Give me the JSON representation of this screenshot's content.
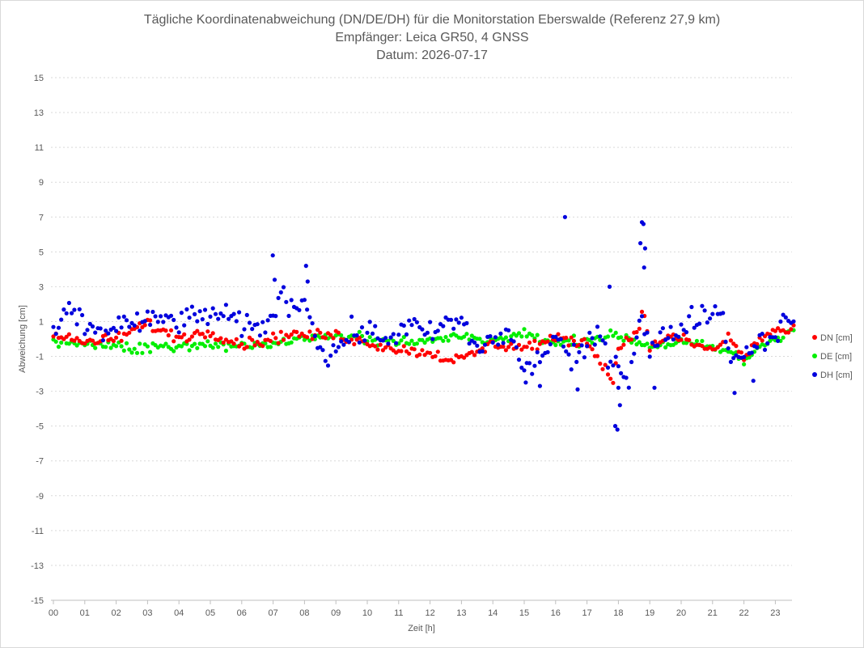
{
  "chart_data": {
    "type": "scatter",
    "title": "Tägliche Koordinatenabweichung (DN/DE/DH) für die Monitorstation Eberswalde (Referenz 27,9 km)",
    "subtitle_lines": [
      "Empfänger: Leica GR50, 4 GNSS",
      "Datum: 2026-07-17"
    ],
    "xlabel": "Zeit [h]",
    "ylabel": "Abweichung [cm]",
    "xlim": [
      0,
      24
    ],
    "ylim": [
      -15,
      15
    ],
    "y_ticks": [
      15,
      13,
      11,
      9,
      7,
      5,
      3,
      1,
      -1,
      -3,
      -5,
      -7,
      -9,
      -11,
      -13,
      -15
    ],
    "y_tick_labels": [
      "15",
      "13",
      "11",
      "9",
      "7",
      "5",
      "3",
      "1",
      "-1",
      "-3",
      "-5",
      "-7",
      "-9",
      "-11",
      "-13",
      "-15"
    ],
    "x_tick_labels": [
      "00",
      "01",
      "02",
      "03",
      "04",
      "05",
      "06",
      "07",
      "08",
      "09",
      "10",
      "11",
      "12",
      "13",
      "14",
      "15",
      "16",
      "17",
      "18",
      "19",
      "20",
      "21",
      "22",
      "23"
    ],
    "grid": "horizontal-dotted",
    "legend_position": "right",
    "sampling_minutes": 5,
    "series": [
      {
        "name": "DN [cm]",
        "color": "#ff0000",
        "knots": [
          [
            0,
            0.2
          ],
          [
            1,
            -0.2
          ],
          [
            2,
            0
          ],
          [
            3,
            0.9
          ],
          [
            3.5,
            0.4
          ],
          [
            4,
            0.1
          ],
          [
            5,
            0.4
          ],
          [
            6,
            -0.3
          ],
          [
            7,
            0
          ],
          [
            7.5,
            0.3
          ],
          [
            8,
            0.2
          ],
          [
            9,
            0.2
          ],
          [
            10,
            -0.2
          ],
          [
            11,
            -0.6
          ],
          [
            12,
            -0.8
          ],
          [
            12.5,
            -1.1
          ],
          [
            13,
            -1.2
          ],
          [
            14,
            -0.3
          ],
          [
            15,
            -0.5
          ],
          [
            16,
            0
          ],
          [
            17,
            -0.2
          ],
          [
            17.6,
            -1.6
          ],
          [
            17.8,
            -2.8
          ],
          [
            18,
            -0.5
          ],
          [
            18.5,
            0.3
          ],
          [
            18.8,
            1.5
          ],
          [
            19,
            -0.5
          ],
          [
            19.5,
            0.1
          ],
          [
            20,
            0
          ],
          [
            21,
            -0.7
          ],
          [
            21.5,
            0.1
          ],
          [
            22,
            -1.1
          ],
          [
            22.5,
            0
          ],
          [
            23,
            0.5
          ],
          [
            23.6,
            0.4
          ]
        ],
        "noise": 0.22
      },
      {
        "name": "DE [cm]",
        "color": "#00ee00",
        "knots": [
          [
            0,
            -0.2
          ],
          [
            1,
            -0.3
          ],
          [
            2,
            -0.4
          ],
          [
            3,
            -0.5
          ],
          [
            4,
            -0.5
          ],
          [
            5,
            -0.3
          ],
          [
            6,
            -0.4
          ],
          [
            7,
            -0.3
          ],
          [
            8,
            0.1
          ],
          [
            9,
            0.1
          ],
          [
            10,
            0
          ],
          [
            11,
            -0.2
          ],
          [
            12,
            -0.1
          ],
          [
            13,
            0.2
          ],
          [
            14,
            -0.1
          ],
          [
            15,
            0.3
          ],
          [
            16,
            -0.3
          ],
          [
            17,
            0
          ],
          [
            18,
            0.2
          ],
          [
            19,
            -0.4
          ],
          [
            20,
            -0.2
          ],
          [
            21,
            -0.5
          ],
          [
            21.5,
            -0.7
          ],
          [
            22,
            -1.3
          ],
          [
            22.5,
            -0.4
          ],
          [
            23,
            0
          ],
          [
            23.6,
            0.7
          ]
        ],
        "noise": 0.2
      },
      {
        "name": "DH [cm]",
        "color": "#0000dd",
        "knots": [
          [
            0,
            0.3
          ],
          [
            0.5,
            1.6
          ],
          [
            1,
            0.8
          ],
          [
            1.5,
            0.3
          ],
          [
            2,
            0.8
          ],
          [
            2.5,
            0.9
          ],
          [
            3,
            0.9
          ],
          [
            3.5,
            1.2
          ],
          [
            4,
            1
          ],
          [
            4.5,
            1.2
          ],
          [
            5,
            1.5
          ],
          [
            5.5,
            1.2
          ],
          [
            6,
            0.8
          ],
          [
            6.5,
            0.5
          ],
          [
            7,
            1.4
          ],
          [
            7.3,
            2.5
          ],
          [
            7.7,
            1.9
          ],
          [
            8,
            2.2
          ],
          [
            8.3,
            0.9
          ],
          [
            8.6,
            -1.2
          ],
          [
            9,
            -0.6
          ],
          [
            9.5,
            0.3
          ],
          [
            10,
            0.4
          ],
          [
            10.5,
            0
          ],
          [
            11,
            0.4
          ],
          [
            11.5,
            0.7
          ],
          [
            12,
            0.2
          ],
          [
            12.5,
            0.9
          ],
          [
            13,
            1
          ],
          [
            13.5,
            -0.6
          ],
          [
            14,
            0
          ],
          [
            14.5,
            0.3
          ],
          [
            15,
            -1.8
          ],
          [
            15.5,
            -1.2
          ],
          [
            16,
            0.3
          ],
          [
            16.5,
            -1.5
          ],
          [
            17,
            -0.4
          ],
          [
            17.5,
            0.3
          ],
          [
            17.8,
            -1.5
          ],
          [
            18,
            -1.3
          ],
          [
            18.3,
            -2.5
          ],
          [
            18.7,
            1.5
          ],
          [
            19,
            -0.7
          ],
          [
            19.5,
            0.2
          ],
          [
            20,
            0.6
          ],
          [
            20.5,
            1.4
          ],
          [
            21,
            1.4
          ],
          [
            21.3,
            1.8
          ],
          [
            21.6,
            -1.5
          ],
          [
            22,
            -0.6
          ],
          [
            22.5,
            -0.3
          ],
          [
            23,
            0.5
          ],
          [
            23.6,
            1.2
          ]
        ],
        "noise": 0.5,
        "outliers": [
          [
            16.3,
            7.0
          ],
          [
            18.75,
            6.7
          ],
          [
            18.8,
            6.6
          ],
          [
            18.7,
            5.5
          ],
          [
            18.85,
            5.2
          ],
          [
            18.82,
            4.1
          ],
          [
            6.99,
            4.8
          ],
          [
            8.05,
            4.2
          ],
          [
            7.05,
            3.4
          ],
          [
            8.1,
            3.3
          ],
          [
            17.72,
            3.0
          ],
          [
            17.9,
            -5.0
          ],
          [
            17.97,
            -5.2
          ],
          [
            18.05,
            -3.8
          ],
          [
            18.0,
            -2.8
          ],
          [
            15.05,
            -2.5
          ],
          [
            15.5,
            -2.7
          ],
          [
            21.7,
            -3.1
          ],
          [
            22.3,
            -2.4
          ],
          [
            16.7,
            -2.9
          ],
          [
            19.15,
            -2.8
          ]
        ]
      }
    ]
  }
}
